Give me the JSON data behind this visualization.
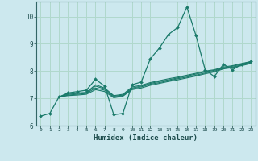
{
  "xlabel": "Humidex (Indice chaleur)",
  "background_color": "#cce8ee",
  "grid_color": "#b0d8cc",
  "line_color": "#1a7a6a",
  "xlim": [
    -0.5,
    23.5
  ],
  "ylim": [
    6.0,
    10.55
  ],
  "xticks": [
    0,
    1,
    2,
    3,
    4,
    5,
    6,
    7,
    8,
    9,
    10,
    11,
    12,
    13,
    14,
    15,
    16,
    17,
    18,
    19,
    20,
    21,
    22,
    23
  ],
  "yticks": [
    6,
    7,
    8,
    9,
    10
  ],
  "lines": [
    {
      "x": [
        0,
        1,
        2,
        3,
        4,
        5,
        6,
        7,
        8,
        9,
        10,
        11,
        12,
        13,
        14,
        15,
        16,
        17,
        18,
        19,
        20,
        21,
        22,
        23
      ],
      "y": [
        6.35,
        6.45,
        7.05,
        7.2,
        7.25,
        7.3,
        7.7,
        7.45,
        6.4,
        6.45,
        7.5,
        7.6,
        8.45,
        8.85,
        9.35,
        9.6,
        10.35,
        9.3,
        8.05,
        7.8,
        8.25,
        8.05,
        8.25,
        8.35
      ],
      "has_markers": true
    },
    {
      "x": [
        2,
        3,
        4,
        5,
        6,
        7,
        8,
        9,
        10,
        11,
        12,
        13,
        14,
        15,
        16,
        17,
        18,
        19,
        20,
        21,
        22,
        23
      ],
      "y": [
        7.05,
        7.18,
        7.2,
        7.22,
        7.5,
        7.38,
        7.1,
        7.15,
        7.42,
        7.48,
        7.58,
        7.65,
        7.72,
        7.78,
        7.85,
        7.92,
        8.0,
        8.05,
        8.15,
        8.2,
        8.28,
        8.35
      ],
      "has_markers": false
    },
    {
      "x": [
        2,
        3,
        4,
        5,
        6,
        7,
        8,
        9,
        10,
        11,
        12,
        13,
        14,
        15,
        16,
        17,
        18,
        19,
        20,
        21,
        22,
        23
      ],
      "y": [
        7.05,
        7.15,
        7.18,
        7.2,
        7.45,
        7.35,
        7.08,
        7.12,
        7.38,
        7.45,
        7.55,
        7.62,
        7.68,
        7.75,
        7.82,
        7.89,
        7.97,
        8.03,
        8.12,
        8.18,
        8.25,
        8.33
      ],
      "has_markers": false
    },
    {
      "x": [
        2,
        3,
        4,
        5,
        6,
        7,
        8,
        9,
        10,
        11,
        12,
        13,
        14,
        15,
        16,
        17,
        18,
        19,
        20,
        21,
        22,
        23
      ],
      "y": [
        7.05,
        7.12,
        7.15,
        7.18,
        7.38,
        7.3,
        7.05,
        7.1,
        7.35,
        7.42,
        7.52,
        7.58,
        7.65,
        7.72,
        7.78,
        7.85,
        7.93,
        8.0,
        8.1,
        8.15,
        8.22,
        8.3
      ],
      "has_markers": false
    },
    {
      "x": [
        2,
        3,
        4,
        5,
        6,
        7,
        8,
        9,
        10,
        11,
        12,
        13,
        14,
        15,
        16,
        17,
        18,
        19,
        20,
        21,
        22,
        23
      ],
      "y": [
        7.05,
        7.1,
        7.12,
        7.15,
        7.32,
        7.25,
        7.02,
        7.08,
        7.32,
        7.38,
        7.48,
        7.55,
        7.62,
        7.68,
        7.75,
        7.82,
        7.9,
        7.97,
        8.08,
        8.13,
        8.2,
        8.28
      ],
      "has_markers": false
    }
  ]
}
